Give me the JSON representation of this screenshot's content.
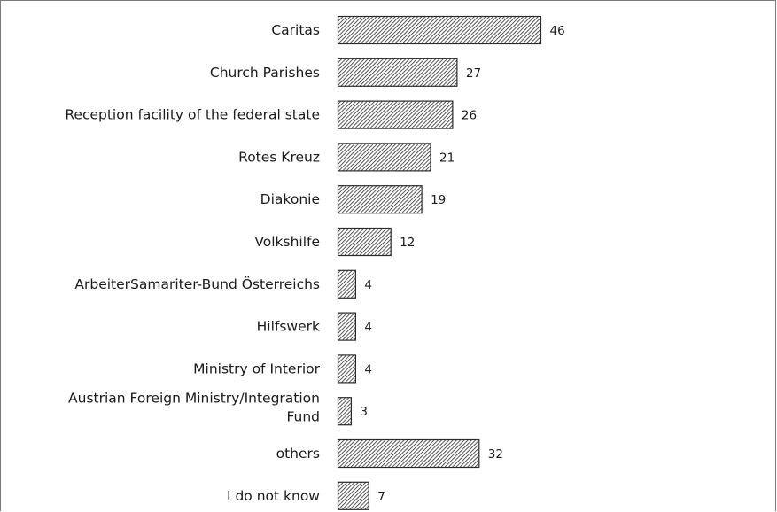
{
  "chart_data": {
    "type": "bar",
    "orientation": "horizontal",
    "categories": [
      [
        "Caritas"
      ],
      [
        "Church Parishes"
      ],
      [
        "Reception facility of the federal state"
      ],
      [
        "Rotes Kreuz"
      ],
      [
        "Diakonie"
      ],
      [
        "Volkshilfe"
      ],
      [
        "ArbeiterSamariter-Bund Österreichs"
      ],
      [
        "Hilfswerk"
      ],
      [
        "Ministry of Interior"
      ],
      [
        "Austrian Foreign Ministry/Integration",
        "Fund"
      ],
      [
        "others"
      ],
      [
        "I do not know"
      ]
    ],
    "values": [
      46,
      27,
      26,
      21,
      19,
      12,
      4,
      4,
      4,
      3,
      32,
      7
    ],
    "value_labels": [
      "46",
      "27",
      "26",
      "21",
      "19",
      "12",
      "4",
      "4",
      "4",
      "3",
      "32",
      "7"
    ],
    "xlim": [
      0,
      50
    ],
    "grid": false,
    "bar_fill": "hatched",
    "bar_color": "#2b2b2b"
  }
}
